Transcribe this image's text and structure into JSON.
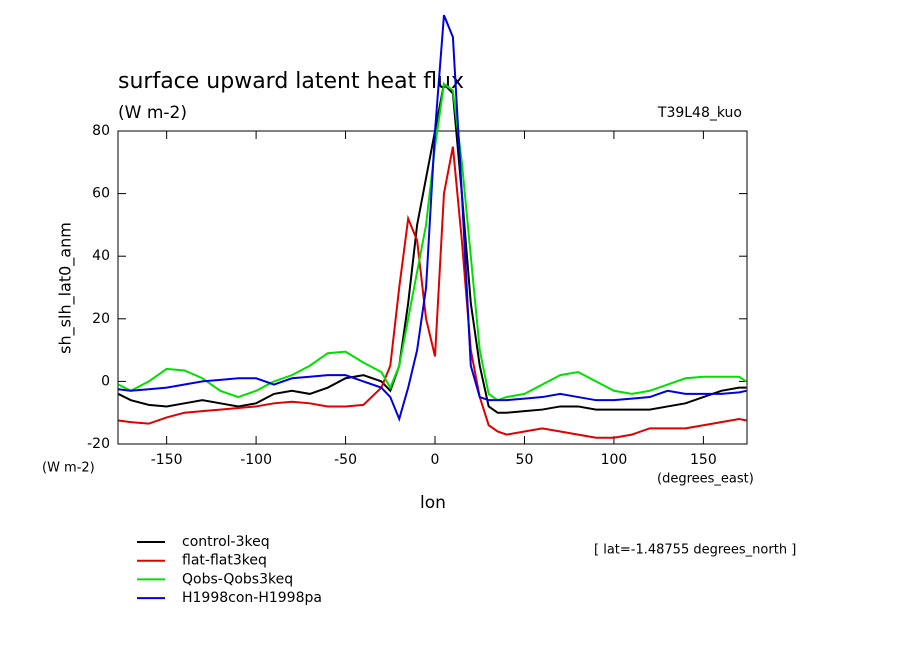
{
  "chart_data": {
    "type": "line",
    "title": "surface upward latent heat flux",
    "subtitle": "(W m-2)",
    "annotation": "T39L48_kuo",
    "ylabel": "sh_slh_lat0_anm",
    "yunits": "(W m-2)",
    "xunits": "(degrees_east)",
    "xlabel": "lon",
    "footnote": "[ lat=-1.48755 degrees_north ]",
    "xlim": [
      -177.1875,
      174.375
    ],
    "ylim": [
      -20,
      80
    ],
    "xticks": [
      -150,
      -100,
      -50,
      0,
      50,
      100,
      150
    ],
    "yticks": [
      -20,
      0,
      20,
      40,
      60,
      80
    ],
    "x": [
      -177,
      -170,
      -160,
      -150,
      -140,
      -130,
      -120,
      -110,
      -100,
      -90,
      -80,
      -70,
      -60,
      -50,
      -40,
      -30,
      -25,
      -20,
      -15,
      -10,
      -5,
      0,
      5,
      10,
      15,
      20,
      25,
      30,
      35,
      40,
      50,
      60,
      70,
      80,
      90,
      100,
      110,
      120,
      130,
      140,
      150,
      160,
      170,
      174
    ],
    "series": [
      {
        "name": "control-3keq",
        "color": "#000000",
        "values": [
          -4,
          -6,
          -7.5,
          -8,
          -7,
          -6,
          -7,
          -8,
          -7,
          -4,
          -3,
          -4,
          -2,
          1,
          2,
          0,
          -3,
          5,
          25,
          50,
          65,
          80,
          95,
          92,
          60,
          25,
          5,
          -8,
          -10,
          -10,
          -9.5,
          -9,
          -8,
          -8,
          -9,
          -9,
          -9,
          -9,
          -8,
          -7,
          -5,
          -3,
          -2,
          -2
        ]
      },
      {
        "name": "flat-flat3keq",
        "color": "#e00000",
        "values": [
          -12.5,
          -13,
          -13.5,
          -11.5,
          -10,
          -9.5,
          -9,
          -8.5,
          -8,
          -7,
          -6.5,
          -7,
          -8,
          -8,
          -7.5,
          -2,
          5,
          30,
          52,
          45,
          20,
          8,
          60,
          75,
          45,
          10,
          -5,
          -14,
          -16,
          -17,
          -16,
          -15,
          -16,
          -17,
          -18,
          -18,
          -17,
          -15,
          -15,
          -15,
          -14,
          -13,
          -12,
          -12.5
        ]
      },
      {
        "name": "Qobs-Qobs3keq",
        "color": "#00e000",
        "values": [
          -1,
          -3,
          0,
          4,
          3.5,
          1,
          -3,
          -5,
          -3,
          0,
          2,
          5,
          9,
          9.5,
          6,
          3,
          -2,
          5,
          20,
          35,
          50,
          75,
          95,
          93,
          70,
          40,
          10,
          -4,
          -6,
          -5,
          -4,
          -1,
          2,
          3,
          0,
          -3,
          -4,
          -3,
          -1,
          1,
          1.5,
          1.5,
          1.5,
          0
        ]
      },
      {
        "name": "H1998con-H1998pa",
        "color": "#0000e0",
        "values": [
          -2.5,
          -3,
          -2.5,
          -2,
          -1,
          0,
          0.5,
          1,
          1,
          -1,
          1,
          1.5,
          2,
          2,
          0,
          -2,
          -5,
          -12,
          -2,
          10,
          30,
          80,
          117,
          110,
          60,
          5,
          -5,
          -6,
          -6,
          -6,
          -5.5,
          -5,
          -4,
          -5,
          -6,
          -6,
          -5.5,
          -5,
          -3,
          -4,
          -4,
          -4,
          -3.5,
          -3
        ]
      }
    ]
  }
}
